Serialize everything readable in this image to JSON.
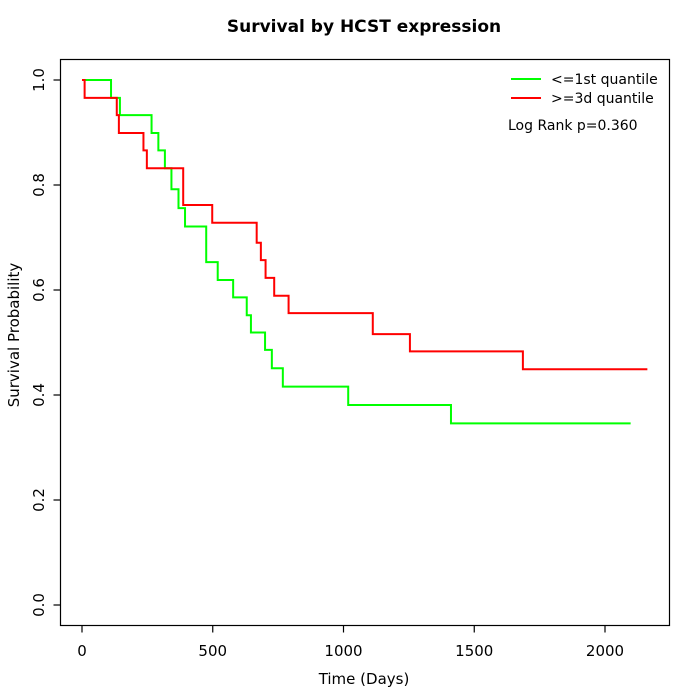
{
  "chart_data": {
    "type": "line",
    "subtype": "kaplan-meier-step",
    "title": "Survival by HCST expression",
    "xlabel": "Time (Days)",
    "ylabel": "Survival Probability",
    "x_ticks": [
      0,
      500,
      1000,
      1500,
      2000
    ],
    "y_ticks": [
      "0.0",
      "0.2",
      "0.4",
      "0.6",
      "0.8",
      "1.0"
    ],
    "xlim": [
      -86,
      2246
    ],
    "ylim": [
      -0.04,
      1.04
    ],
    "grid": false,
    "legend_position": "top-right",
    "annotation": "Log Rank p=0.360",
    "series": [
      {
        "name": "<=1st quantile",
        "color": "#00FF00",
        "start": [
          0,
          1.0
        ],
        "steps": [
          [
            111,
            0.966
          ],
          [
            145,
            0.933
          ],
          [
            266,
            0.899
          ],
          [
            292,
            0.866
          ],
          [
            317,
            0.832
          ],
          [
            342,
            0.792
          ],
          [
            369,
            0.756
          ],
          [
            394,
            0.721
          ],
          [
            475,
            0.653
          ],
          [
            519,
            0.619
          ],
          [
            578,
            0.586
          ],
          [
            630,
            0.552
          ],
          [
            646,
            0.519
          ],
          [
            700,
            0.486
          ],
          [
            726,
            0.451
          ],
          [
            768,
            0.416
          ],
          [
            1018,
            0.381
          ],
          [
            1411,
            0.346
          ]
        ],
        "end_x": 2098
      },
      {
        "name": ">=3d quantile",
        "color": "#FF0000",
        "start": [
          0,
          1.0
        ],
        "steps": [
          [
            10,
            0.966
          ],
          [
            133,
            0.933
          ],
          [
            141,
            0.899
          ],
          [
            235,
            0.866
          ],
          [
            248,
            0.832
          ],
          [
            387,
            0.762
          ],
          [
            498,
            0.728
          ],
          [
            668,
            0.69
          ],
          [
            684,
            0.657
          ],
          [
            702,
            0.623
          ],
          [
            735,
            0.589
          ],
          [
            790,
            0.556
          ],
          [
            1112,
            0.516
          ],
          [
            1254,
            0.483
          ],
          [
            1686,
            0.449
          ]
        ],
        "end_x": 2162
      }
    ]
  }
}
